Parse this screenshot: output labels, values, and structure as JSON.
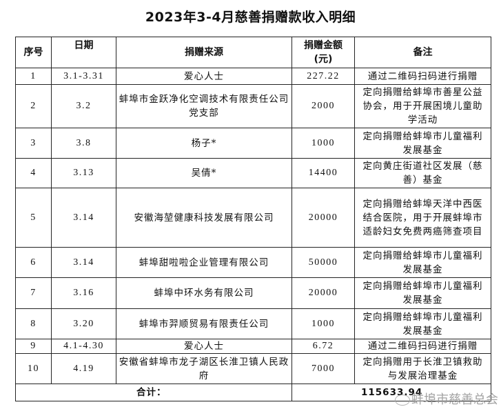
{
  "title": "2023年3-4月慈善捐赠款收入明细",
  "headers": {
    "index": "序号",
    "date": "日期",
    "source": "捐赠来源",
    "amount_line1": "捐赠金额",
    "amount_line2": "(元)",
    "note": "备注"
  },
  "rows": [
    {
      "index": "1",
      "date": "3.1-3.31",
      "source": "爱心人士",
      "amount": "227.22",
      "note": "通过二维码扫码进行捐赠"
    },
    {
      "index": "2",
      "date": "3.2",
      "source": "蚌埠市金跃净化空调技术有限责任公司党支部",
      "amount": "2000",
      "note": "定向捐赠给蚌埠市善星公益协会，用于开展困境儿童助学活动"
    },
    {
      "index": "3",
      "date": "3.8",
      "source": "杨子*",
      "amount": "1000",
      "note": "定向捐赠给蚌埠市儿童福利发展基金"
    },
    {
      "index": "4",
      "date": "3.13",
      "source": "吴倩*",
      "amount": "14400",
      "note": "定向黄庄街道社区发展（慈善）基金"
    },
    {
      "index": "5",
      "date": "3.14",
      "source": "安徽海堃健康科技发展有限公司",
      "amount": "20000",
      "note": "定向捐赠给蚌埠天洋中西医结合医院，用于开展蚌埠市适龄妇女免费两癌筛查项目"
    },
    {
      "index": "6",
      "date": "3.14",
      "source": "蚌埠甜啦啦企业管理有限公司",
      "amount": "50000",
      "note": "定向捐赠给蚌埠市儿童福利发展基金"
    },
    {
      "index": "7",
      "date": "3.16",
      "source": "蚌埠中环水务有限公司",
      "amount": "20000",
      "note": "定向捐赠给蚌埠市儿童福利发展基金"
    },
    {
      "index": "8",
      "date": "3.20",
      "source": "蚌埠市羿顺贸易有限责任公司",
      "amount": "1000",
      "note": "定向捐赠给蚌埠市儿童福利发展基金"
    },
    {
      "index": "9",
      "date": "4.1-4.30",
      "source": "爱心人士",
      "amount": "6.72",
      "note": "通过二维码扫码进行捐赠"
    },
    {
      "index": "10",
      "date": "4.19",
      "source": "安徽省蚌埠市龙子湖区长淮卫镇人民政府",
      "amount": "7000",
      "note": "定向捐赠用于长淮卫镇救助与发展治理基金"
    }
  ],
  "total": {
    "label": "合计：",
    "amount": "115633.94"
  },
  "watermark": "蚌埠市慈善总会"
}
